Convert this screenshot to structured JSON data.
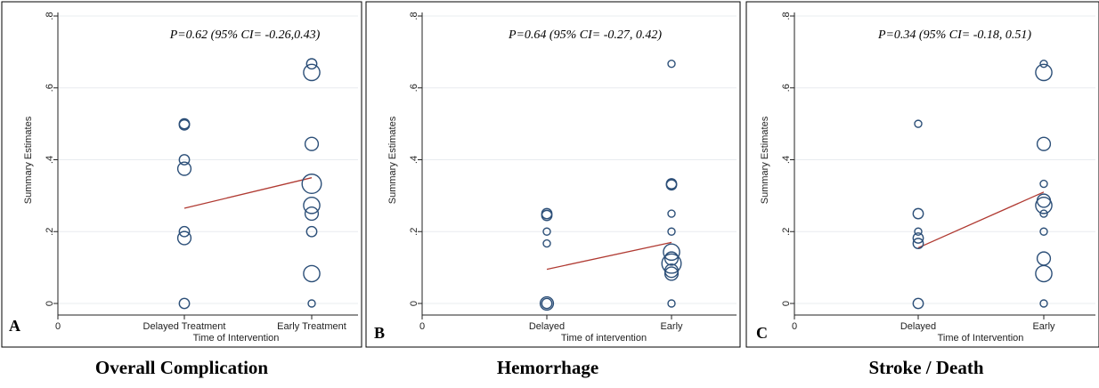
{
  "colors": {
    "marker": "#2c4f78",
    "fit_line": "#b03a32",
    "grid": "#e8ecef"
  },
  "chart_data": [
    {
      "type": "scatter",
      "panel_letter": "A",
      "caption": "Overall Complication",
      "annotation": "P=0.62 (95% CI= -0.26,0.43)",
      "ylabel": "Summary Estimates",
      "xlabel": "Time of Intervention",
      "x_tick_labels": [
        "0",
        "Delayed Treatment",
        "Early Treatment"
      ],
      "y_tick_labels": [
        "0",
        ".2",
        ".4",
        ".6",
        ".8"
      ],
      "ylim": [
        0,
        0.8
      ],
      "grid": true,
      "groups": [
        "Delayed Treatment",
        "Early Treatment"
      ],
      "points": [
        {
          "group": "Delayed Treatment",
          "y": 0.5,
          "size": 2
        },
        {
          "group": "Delayed Treatment",
          "y": 0.497,
          "size": 2
        },
        {
          "group": "Delayed Treatment",
          "y": 0.4,
          "size": 2
        },
        {
          "group": "Delayed Treatment",
          "y": 0.375,
          "size": 3
        },
        {
          "group": "Delayed Treatment",
          "y": 0.2,
          "size": 2
        },
        {
          "group": "Delayed Treatment",
          "y": 0.182,
          "size": 3
        },
        {
          "group": "Delayed Treatment",
          "y": 0.0,
          "size": 2
        },
        {
          "group": "Early Treatment",
          "y": 0.667,
          "size": 2
        },
        {
          "group": "Early Treatment",
          "y": 0.643,
          "size": 4
        },
        {
          "group": "Early Treatment",
          "y": 0.444,
          "size": 3
        },
        {
          "group": "Early Treatment",
          "y": 0.333,
          "size": 5
        },
        {
          "group": "Early Treatment",
          "y": 0.273,
          "size": 4
        },
        {
          "group": "Early Treatment",
          "y": 0.25,
          "size": 3
        },
        {
          "group": "Early Treatment",
          "y": 0.2,
          "size": 2
        },
        {
          "group": "Early Treatment",
          "y": 0.083,
          "size": 4
        },
        {
          "group": "Early Treatment",
          "y": 0.0,
          "size": 1
        }
      ],
      "fit_line": {
        "y_start": 0.265,
        "y_end": 0.35
      }
    },
    {
      "type": "scatter",
      "panel_letter": "B",
      "caption": "Hemorrhage",
      "annotation": "P=0.64 (95% CI= -0.27, 0.42)",
      "ylabel": "Summary Estimates",
      "xlabel": "Time of intervention",
      "x_tick_labels": [
        "0",
        "Delayed",
        "Early"
      ],
      "y_tick_labels": [
        "0",
        ".2",
        ".4",
        ".6",
        ".8"
      ],
      "ylim": [
        0,
        0.8
      ],
      "grid": true,
      "groups": [
        "Delayed",
        "Early"
      ],
      "points": [
        {
          "group": "Delayed",
          "y": 0.25,
          "size": 2
        },
        {
          "group": "Delayed",
          "y": 0.245,
          "size": 2
        },
        {
          "group": "Delayed",
          "y": 0.2,
          "size": 1
        },
        {
          "group": "Delayed",
          "y": 0.167,
          "size": 1
        },
        {
          "group": "Delayed",
          "y": 0.0,
          "size": 2
        },
        {
          "group": "Delayed",
          "y": 0.0,
          "size": 3
        },
        {
          "group": "Early",
          "y": 0.667,
          "size": 1
        },
        {
          "group": "Early",
          "y": 0.333,
          "size": 2
        },
        {
          "group": "Early",
          "y": 0.33,
          "size": 2
        },
        {
          "group": "Early",
          "y": 0.25,
          "size": 1
        },
        {
          "group": "Early",
          "y": 0.2,
          "size": 1
        },
        {
          "group": "Early",
          "y": 0.143,
          "size": 4
        },
        {
          "group": "Early",
          "y": 0.125,
          "size": 3
        },
        {
          "group": "Early",
          "y": 0.111,
          "size": 5
        },
        {
          "group": "Early",
          "y": 0.091,
          "size": 3
        },
        {
          "group": "Early",
          "y": 0.083,
          "size": 3
        },
        {
          "group": "Early",
          "y": 0.0,
          "size": 1
        }
      ],
      "fit_line": {
        "y_start": 0.095,
        "y_end": 0.17
      }
    },
    {
      "type": "scatter",
      "panel_letter": "C",
      "caption": "Stroke / Death",
      "annotation": "P=0.34 (95% CI= -0.18, 0.51)",
      "ylabel": "Summary Estimates",
      "xlabel": "Time of Intervention",
      "x_tick_labels": [
        "0",
        "Delayed",
        "Early"
      ],
      "y_tick_labels": [
        "0",
        ".2",
        ".4",
        ".6",
        ".8"
      ],
      "ylim": [
        0,
        0.8
      ],
      "grid": true,
      "groups": [
        "Delayed",
        "Early"
      ],
      "points": [
        {
          "group": "Delayed",
          "y": 0.5,
          "size": 1
        },
        {
          "group": "Delayed",
          "y": 0.25,
          "size": 2
        },
        {
          "group": "Delayed",
          "y": 0.2,
          "size": 1
        },
        {
          "group": "Delayed",
          "y": 0.182,
          "size": 2
        },
        {
          "group": "Delayed",
          "y": 0.167,
          "size": 2
        },
        {
          "group": "Delayed",
          "y": 0.0,
          "size": 2
        },
        {
          "group": "Early",
          "y": 0.667,
          "size": 1
        },
        {
          "group": "Early",
          "y": 0.643,
          "size": 4
        },
        {
          "group": "Early",
          "y": 0.444,
          "size": 3
        },
        {
          "group": "Early",
          "y": 0.333,
          "size": 1
        },
        {
          "group": "Early",
          "y": 0.286,
          "size": 3
        },
        {
          "group": "Early",
          "y": 0.273,
          "size": 4
        },
        {
          "group": "Early",
          "y": 0.25,
          "size": 1
        },
        {
          "group": "Early",
          "y": 0.2,
          "size": 1
        },
        {
          "group": "Early",
          "y": 0.125,
          "size": 3
        },
        {
          "group": "Early",
          "y": 0.083,
          "size": 4
        },
        {
          "group": "Early",
          "y": 0.0,
          "size": 1
        }
      ],
      "fit_line": {
        "y_start": 0.155,
        "y_end": 0.31
      }
    }
  ]
}
